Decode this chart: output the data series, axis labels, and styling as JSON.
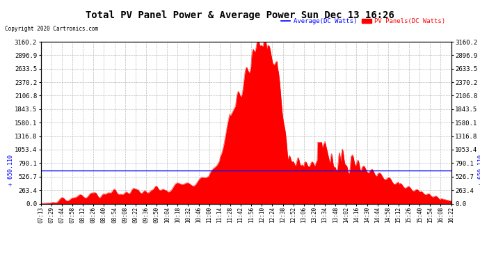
{
  "title": "Total PV Panel Power & Average Power Sun Dec 13 16:26",
  "copyright": "Copyright 2020 Cartronics.com",
  "legend_avg": "Average(DC Watts)",
  "legend_pv": "PV Panels(DC Watts)",
  "avg_value": 650.11,
  "avg_label": "+ 650.110",
  "ymax": 3160.2,
  "ymin": 0.0,
  "yticks": [
    0.0,
    263.4,
    526.7,
    790.1,
    1053.4,
    1316.8,
    1580.1,
    1843.5,
    2106.8,
    2370.2,
    2633.5,
    2896.9,
    3160.2
  ],
  "background_color": "#ffffff",
  "fill_color": "#ff0000",
  "avg_line_color": "#0000ff",
  "grid_color": "#bbbbbb",
  "title_color": "#000000",
  "copyright_color": "#000000",
  "legend_avg_color": "#0000ff",
  "legend_pv_color": "#ff0000",
  "xtick_labels": [
    "07:13",
    "07:29",
    "07:44",
    "07:58",
    "08:12",
    "08:26",
    "08:40",
    "08:54",
    "09:08",
    "09:22",
    "09:36",
    "09:50",
    "10:04",
    "10:18",
    "10:32",
    "10:46",
    "11:00",
    "11:14",
    "11:28",
    "11:42",
    "11:56",
    "12:10",
    "12:24",
    "12:38",
    "12:52",
    "13:06",
    "13:20",
    "13:34",
    "13:48",
    "14:02",
    "14:16",
    "14:30",
    "14:44",
    "14:58",
    "15:12",
    "15:26",
    "15:40",
    "15:54",
    "16:08",
    "16:22"
  ]
}
